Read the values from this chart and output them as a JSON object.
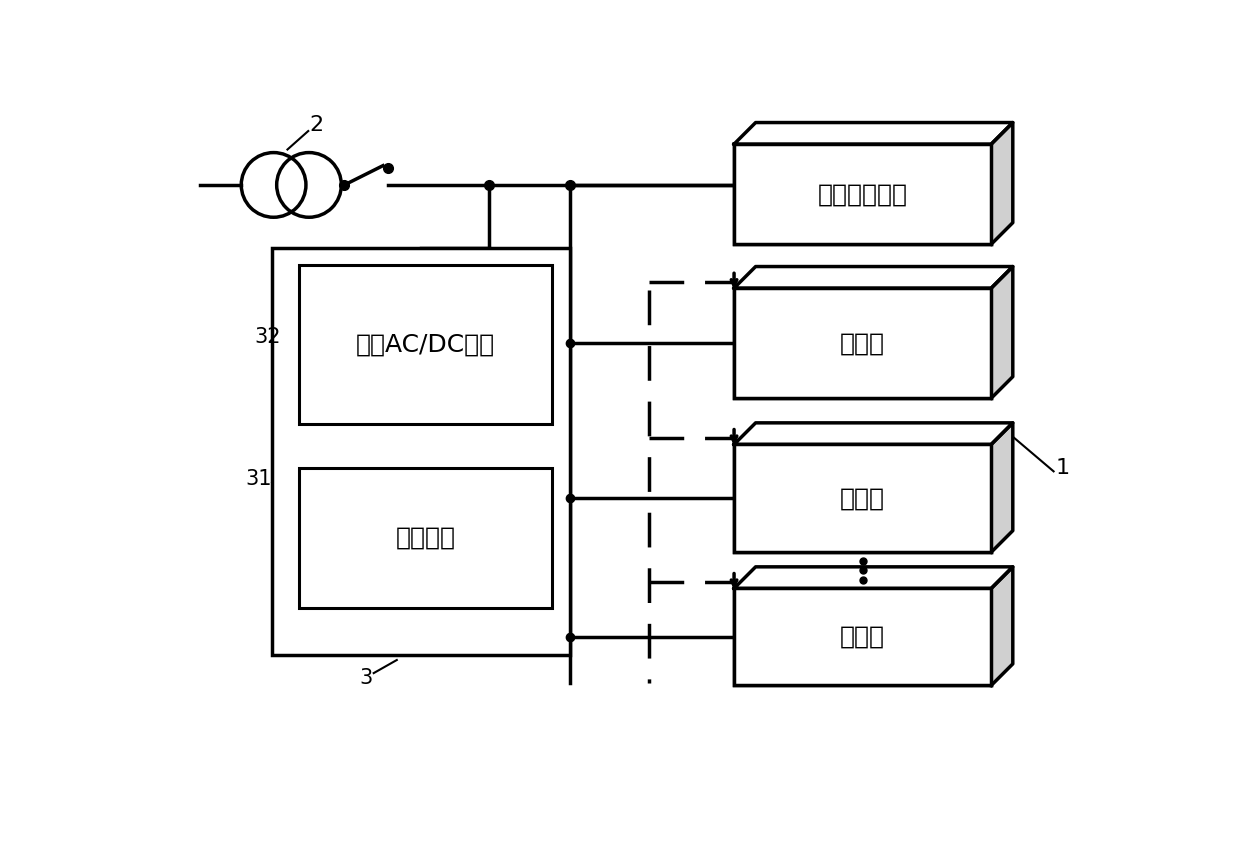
{
  "bg_color": "#ffffff",
  "line_color": "#000000",
  "label_2": "2",
  "label_1": "1",
  "label_3": "3",
  "label_31": "31",
  "label_32": "32",
  "text_acdc": "双向AC/DC模组",
  "text_storage": "储能单元",
  "text_load": "居民用电负载",
  "text_charger": "充电桩",
  "font_size_label": 14,
  "font_size_box": 18
}
